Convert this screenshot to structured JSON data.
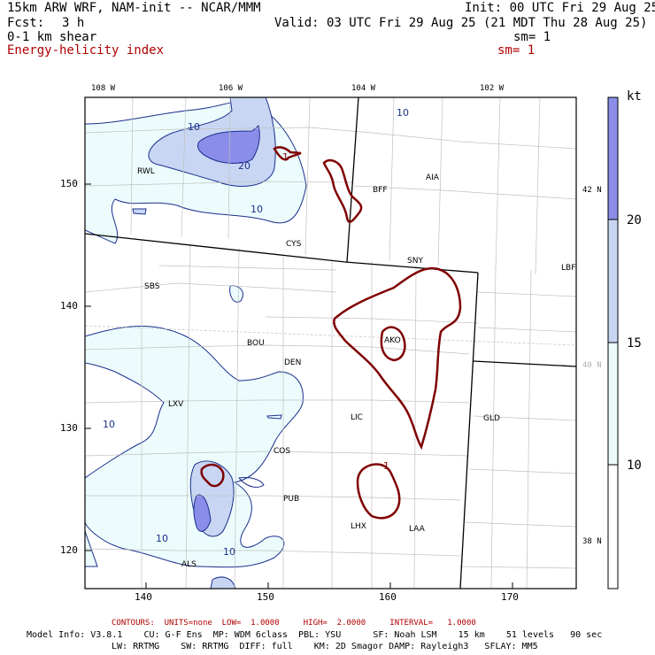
{
  "header": {
    "title": "15km ARW WRF, NAM-init -- NCAR/MMM",
    "init": "Init: 00 UTC Fri 29 Aug 25",
    "fcst_label": "Fcst:",
    "fcst_value": "3 h",
    "valid": "Valid: 03 UTC Fri 29 Aug 25 (21 MDT Thu 28 Aug 25)",
    "field1": "0-1 km shear",
    "sm1": "sm= 1",
    "field2": "Energy-helicity index",
    "sm2": "sm= 1"
  },
  "axes": {
    "lon_top": [
      "108 W",
      "106 W",
      "104 W",
      "102 W"
    ],
    "lat_right": [
      "42 N",
      "40 N",
      "38 N"
    ],
    "x_ticks": [
      "140",
      "150",
      "160",
      "170"
    ],
    "y_ticks": [
      "150",
      "140",
      "130",
      "120"
    ]
  },
  "colorbar": {
    "unit": "kt",
    "labels": [
      "20",
      "15",
      "10"
    ],
    "colors": {
      "above_20": "#8a8ee8",
      "15_20": "#c8d6f4",
      "10_15": "#ecfcfc",
      "below_10": "#ffffff"
    }
  },
  "map": {
    "cities": [
      "RWL",
      "BFF",
      "AIA",
      "CYS",
      "SNY",
      "LBF",
      "SBS",
      "AKO",
      "BOU",
      "DEN",
      "LXV",
      "LIC",
      "GLD",
      "COS",
      "PUB",
      "LHX",
      "LAA",
      "ALS"
    ],
    "shear_contour_labels": [
      "10",
      "20",
      "10",
      "10",
      "10",
      "10",
      "10"
    ],
    "ehi_contour_labels": [
      "1",
      "1"
    ]
  },
  "footer": {
    "contours": "CONTOURS:  UNITS=none  LOW=  1.0000     HIGH=  2.0000     INTERVAL=   1.0000",
    "model_info": "Model Info: V3.8.1    CU: G-F Ens  MP: WDM 6class  PBL: YSU      SF: Noah LSM    15 km    51 levels   90 sec",
    "model_info2": "LW: RRTMG    SW: RRTMG  DIFF: full    KM: 2D Smagor DAMP: Rayleigh3   SFLAY: MM5"
  }
}
